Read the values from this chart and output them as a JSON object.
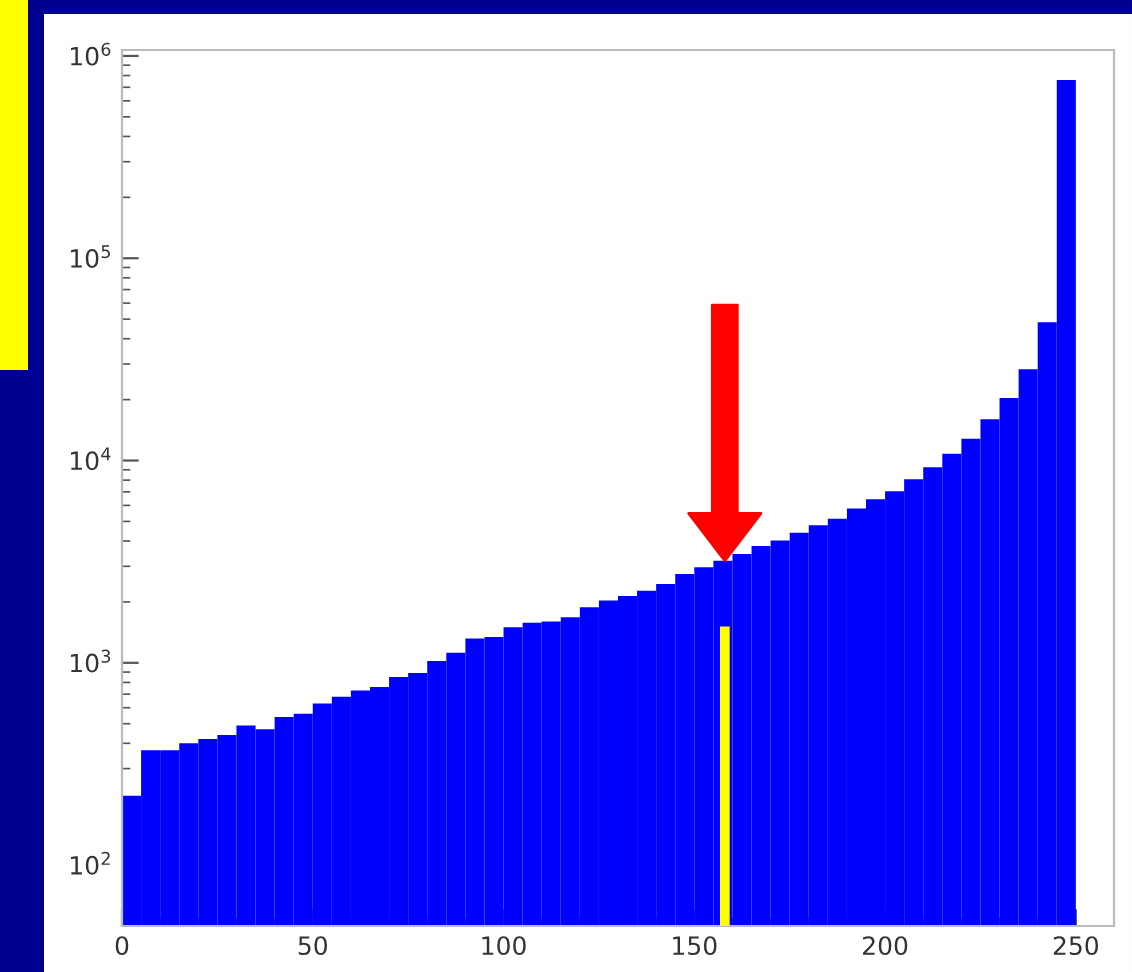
{
  "chart_data": {
    "type": "histogram",
    "bins": [
      0,
      5,
      10,
      15,
      20,
      25,
      30,
      35,
      40,
      45,
      50,
      55,
      60,
      65,
      70,
      75,
      80,
      85,
      90,
      95,
      100,
      105,
      110,
      115,
      120,
      125,
      130,
      135,
      140,
      145,
      150,
      155,
      160,
      165,
      170,
      175,
      180,
      185,
      190,
      195,
      200,
      205,
      210,
      215,
      220,
      225,
      230,
      235,
      240,
      245,
      250
    ],
    "values": [
      220,
      370,
      370,
      400,
      420,
      440,
      490,
      470,
      540,
      560,
      630,
      680,
      730,
      760,
      850,
      890,
      1020,
      1120,
      1320,
      1340,
      1500,
      1580,
      1600,
      1680,
      1880,
      2030,
      2140,
      2270,
      2450,
      2750,
      2970,
      3200,
      3450,
      3780,
      4020,
      4400,
      4790,
      5160,
      5790,
      6440,
      7050,
      8090,
      9270,
      10800,
      12800,
      16000,
      20400,
      28300,
      48200,
      760000
    ],
    "color": "#0000ff",
    "log": "y",
    "xlim": [
      0,
      260
    ],
    "xticks": [
      0,
      50,
      100,
      150,
      200,
      250
    ],
    "ylim": [
      50,
      1070000
    ],
    "yticks": [
      {
        "value": 100,
        "label": "10$^{2}$"
      },
      {
        "value": 1000,
        "label": "10$^{3}$"
      },
      {
        "value": 10000,
        "label": "10$^{4}$"
      },
      {
        "value": 100000,
        "label": "10$^{5}$"
      },
      {
        "value": 1000000,
        "label": "10$^{6}$"
      }
    ],
    "ref_lines": [
      {
        "axis": "x",
        "value": 158,
        "color": "#ffff00"
      }
    ],
    "grid": false
  }
}
